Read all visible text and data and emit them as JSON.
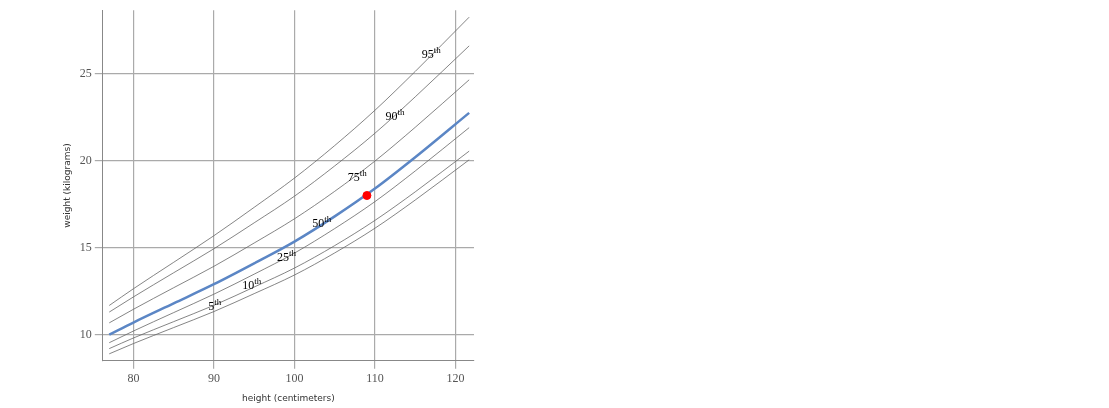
{
  "chart_data": {
    "type": "line",
    "xlabel": "height (centimeters)",
    "ylabel": "weight (kilograms)",
    "x": [
      77,
      80,
      85,
      90,
      95,
      100,
      105,
      110,
      115,
      121.7
    ],
    "series": [
      {
        "color": "#666666",
        "values": [
          11.68,
          12.64,
          14.16,
          15.69,
          17.32,
          19.0,
          20.87,
          22.9,
          25.13,
          28.25
        ]
      },
      {
        "color": "#666666",
        "values": [
          11.3,
          12.17,
          13.56,
          14.94,
          16.43,
          17.96,
          19.7,
          21.58,
          23.67,
          26.6
        ]
      },
      {
        "color": "#666666",
        "values": [
          10.68,
          11.46,
          12.7,
          13.93,
          15.27,
          16.66,
          18.24,
          19.98,
          21.92,
          24.65
        ]
      },
      {
        "color": "#5b86c5",
        "values": [
          10.0,
          10.7,
          11.8,
          12.9,
          14.1,
          15.35,
          16.8,
          18.4,
          20.2,
          22.75
        ]
      },
      {
        "color": "#666666",
        "values": [
          9.54,
          10.21,
          11.27,
          12.33,
          13.48,
          14.69,
          16.1,
          17.65,
          19.41,
          21.9
        ]
      },
      {
        "color": "#666666",
        "values": [
          9.2,
          9.81,
          10.75,
          11.69,
          12.74,
          13.83,
          15.12,
          16.57,
          18.21,
          20.55
        ]
      },
      {
        "color": "#666666",
        "values": [
          8.9,
          9.49,
          10.41,
          11.33,
          12.36,
          13.43,
          14.7,
          16.12,
          17.74,
          20.05
        ]
      },
      {
        "type": "scatter",
        "color": "#ff0000",
        "marker": "circle",
        "x": [
          109
        ],
        "values": [
          18
        ]
      }
    ],
    "annotations": [
      {
        "text": "95$^{th}$",
        "x": 117,
        "y": 26.2
      },
      {
        "text": "90$^{th}$",
        "x": 112.5,
        "y": 22.6
      },
      {
        "text": "75$^{th}$",
        "x": 107.8,
        "y": 19.1
      },
      {
        "text": "50$^{th}$",
        "x": 103.4,
        "y": 16.5
      },
      {
        "text": "25$^{th}$",
        "x": 99,
        "y": 14.5
      },
      {
        "text": "10$^{th}$",
        "x": 94.7,
        "y": 12.9
      },
      {
        "text": "5$^{th}$",
        "x": 90.1,
        "y": 11.7
      }
    ],
    "xlim": [
      76.2,
      122.3
    ],
    "ylim": [
      8.5,
      28.65
    ],
    "xticks": [
      80,
      90,
      100,
      110,
      120
    ],
    "yticks": [
      10,
      15,
      20,
      25
    ],
    "grid": true,
    "legend": false,
    "line_style": "solid"
  }
}
